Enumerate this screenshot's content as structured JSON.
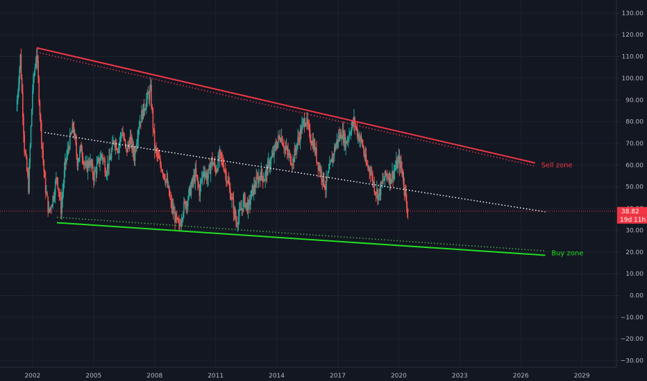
{
  "chart_data": {
    "type": "candlestick",
    "x_axis": {
      "range": [
        2000.4,
        2030.7
      ],
      "ticks": [
        "2002",
        "2005",
        "2008",
        "2011",
        "2014",
        "2017",
        "2020",
        "2023",
        "2026",
        "2029"
      ]
    },
    "y_axis": {
      "range": [
        -33,
        136
      ],
      "ticks": [
        "130.00",
        "120.00",
        "110.00",
        "100.00",
        "90.00",
        "80.00",
        "70.00",
        "60.00",
        "50.00",
        "40.00",
        "30.00",
        "20.00",
        "10.00",
        "0.00",
        "−10.00",
        "−20.00",
        "−30.00"
      ],
      "position": "right",
      "grid": true
    },
    "price": {
      "last": 38.82,
      "last_label": "38.82",
      "countdown_label": "19d 11h",
      "series": [
        [
          2001.2,
          85
        ],
        [
          2001.4,
          110
        ],
        [
          2001.6,
          68
        ],
        [
          2001.8,
          50
        ],
        [
          2002.0,
          95
        ],
        [
          2002.2,
          112
        ],
        [
          2002.4,
          78
        ],
        [
          2002.6,
          52
        ],
        [
          2002.8,
          38
        ],
        [
          2003.0,
          45
        ],
        [
          2003.2,
          55
        ],
        [
          2003.4,
          40
        ],
        [
          2003.6,
          60
        ],
        [
          2003.8,
          70
        ],
        [
          2004.0,
          78
        ],
        [
          2004.2,
          62
        ],
        [
          2004.4,
          68
        ],
        [
          2004.6,
          58
        ],
        [
          2004.8,
          62
        ],
        [
          2005.0,
          55
        ],
        [
          2005.2,
          60
        ],
        [
          2005.4,
          65
        ],
        [
          2005.6,
          58
        ],
        [
          2005.8,
          62
        ],
        [
          2006.0,
          72
        ],
        [
          2006.2,
          68
        ],
        [
          2006.4,
          76
        ],
        [
          2006.6,
          66
        ],
        [
          2006.8,
          72
        ],
        [
          2007.0,
          64
        ],
        [
          2007.2,
          78
        ],
        [
          2007.4,
          84
        ],
        [
          2007.6,
          90
        ],
        [
          2007.8,
          94
        ],
        [
          2008.0,
          68
        ],
        [
          2008.2,
          62
        ],
        [
          2008.4,
          58
        ],
        [
          2008.6,
          52
        ],
        [
          2008.8,
          42
        ],
        [
          2009.0,
          36
        ],
        [
          2009.2,
          31
        ],
        [
          2009.4,
          40
        ],
        [
          2009.6,
          44
        ],
        [
          2009.8,
          50
        ],
        [
          2010.0,
          56
        ],
        [
          2010.2,
          48
        ],
        [
          2010.4,
          58
        ],
        [
          2010.6,
          54
        ],
        [
          2010.8,
          62
        ],
        [
          2011.0,
          58
        ],
        [
          2011.2,
          64
        ],
        [
          2011.4,
          60
        ],
        [
          2011.6,
          52
        ],
        [
          2011.8,
          44
        ],
        [
          2012.0,
          34
        ],
        [
          2012.2,
          38
        ],
        [
          2012.4,
          44
        ],
        [
          2012.6,
          40
        ],
        [
          2012.8,
          48
        ],
        [
          2013.0,
          52
        ],
        [
          2013.2,
          56
        ],
        [
          2013.4,
          54
        ],
        [
          2013.6,
          60
        ],
        [
          2013.8,
          64
        ],
        [
          2014.0,
          70
        ],
        [
          2014.2,
          74
        ],
        [
          2014.4,
          68
        ],
        [
          2014.6,
          64
        ],
        [
          2014.8,
          62
        ],
        [
          2015.0,
          70
        ],
        [
          2015.2,
          76
        ],
        [
          2015.4,
          82
        ],
        [
          2015.6,
          74
        ],
        [
          2015.8,
          70
        ],
        [
          2016.0,
          62
        ],
        [
          2016.2,
          56
        ],
        [
          2016.4,
          50
        ],
        [
          2016.6,
          58
        ],
        [
          2016.8,
          66
        ],
        [
          2017.0,
          72
        ],
        [
          2017.2,
          75
        ],
        [
          2017.4,
          70
        ],
        [
          2017.6,
          76
        ],
        [
          2017.8,
          80
        ],
        [
          2018.0,
          74
        ],
        [
          2018.2,
          70
        ],
        [
          2018.4,
          60
        ],
        [
          2018.6,
          58
        ],
        [
          2018.8,
          50
        ],
        [
          2019.0,
          46
        ],
        [
          2019.2,
          52
        ],
        [
          2019.4,
          56
        ],
        [
          2019.6,
          54
        ],
        [
          2019.8,
          58
        ],
        [
          2020.0,
          62
        ],
        [
          2020.2,
          56
        ],
        [
          2020.3,
          48
        ],
        [
          2020.45,
          38.82
        ]
      ]
    },
    "trendlines": [
      {
        "name": "upper",
        "style": "solid",
        "color": "#f23645",
        "from": [
          2002.2,
          114
        ],
        "to": [
          2026.7,
          61
        ]
      },
      {
        "name": "upper-inner",
        "style": "dotted",
        "color": "#f23645",
        "from": [
          2002.2,
          112
        ],
        "to": [
          2026.7,
          59.5
        ]
      },
      {
        "name": "middle",
        "style": "dotted",
        "color": "#ffffff",
        "from": [
          2002.6,
          75
        ],
        "to": [
          2027.2,
          38.5
        ]
      },
      {
        "name": "lower-inner",
        "style": "dotted",
        "color": "#4caf50",
        "from": [
          2003.2,
          36
        ],
        "to": [
          2027.2,
          20.5
        ]
      },
      {
        "name": "lower",
        "style": "solid",
        "color": "#22e022",
        "from": [
          2003.2,
          33.5
        ],
        "to": [
          2027.2,
          18.5
        ]
      }
    ],
    "price_line": {
      "value": 38.82,
      "color": "#f23645",
      "style": "dotted"
    },
    "annotations": [
      {
        "text": "Sell zone",
        "x": 2027.0,
        "y": 60,
        "color": "#f23645"
      },
      {
        "text": "Buy zone",
        "x": 2027.5,
        "y": 19.5,
        "color": "#22e022"
      }
    ],
    "colors": {
      "up": "#26a69a",
      "down": "#ef5350",
      "background": "#131722",
      "grid": "#1e222d",
      "axis_text": "#b2b5be"
    }
  }
}
